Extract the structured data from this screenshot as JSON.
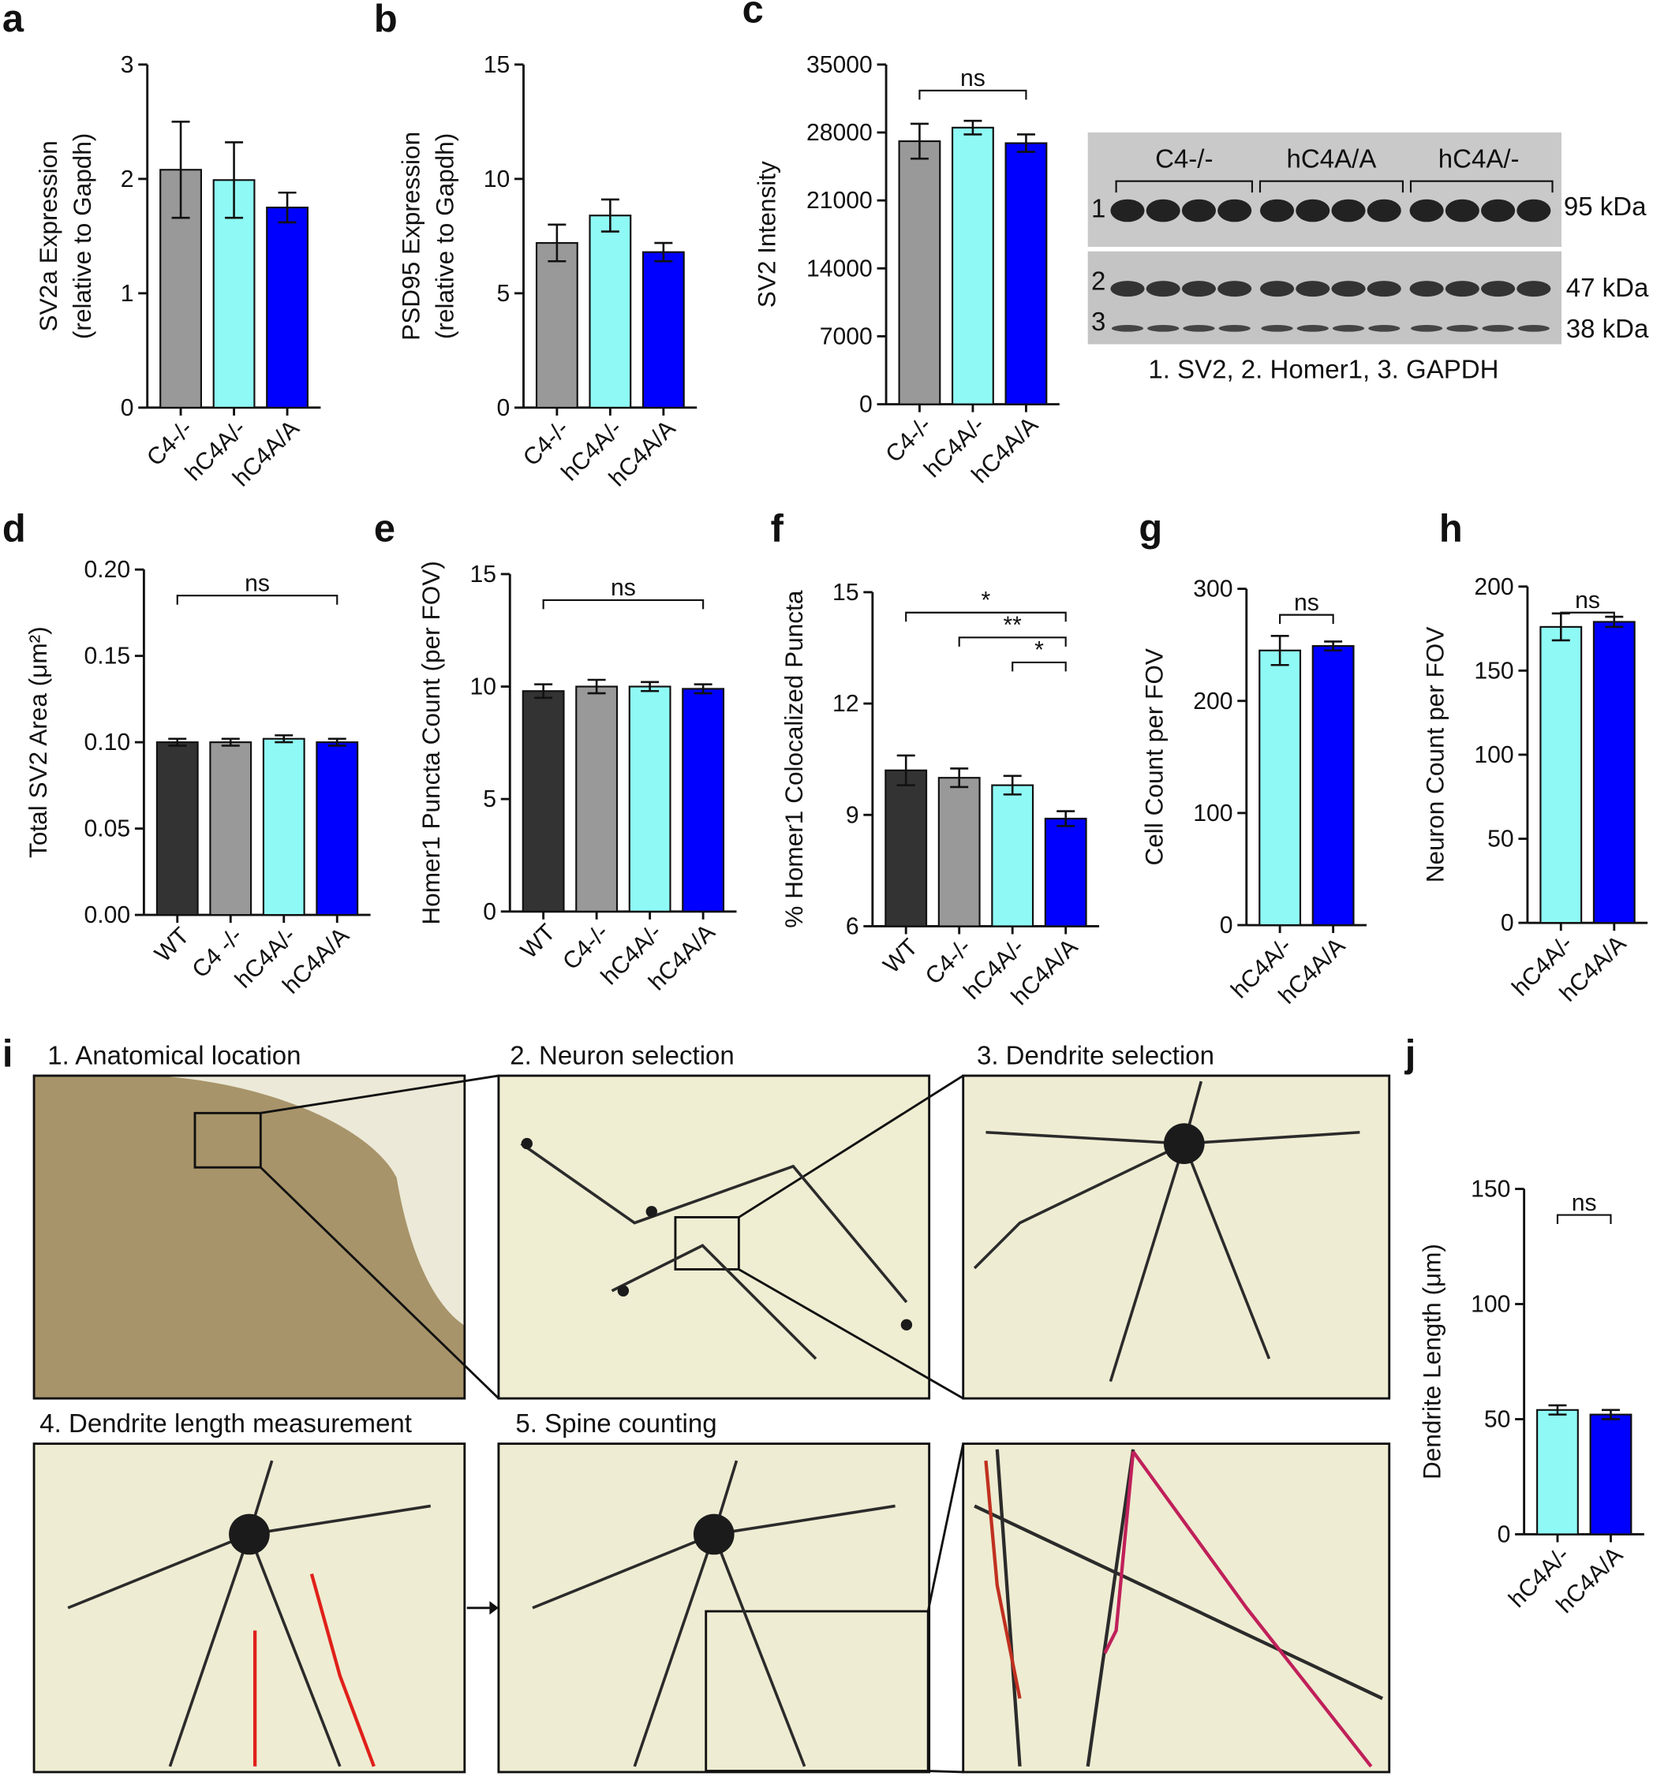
{
  "chart_data": [
    {
      "panel": "a",
      "type": "bar",
      "ylabel": [
        "SV2a Expression",
        "(relative to Gapdh)"
      ],
      "categories": [
        "C4-/-",
        "hC4A/-",
        "hC4A/A"
      ],
      "values": [
        2.08,
        1.99,
        1.75
      ],
      "errors": [
        0.42,
        0.33,
        0.13
      ],
      "colors": [
        "#999999",
        "#8ffaf5",
        "#0000ff"
      ],
      "ylim": [
        0,
        3
      ],
      "yticks": [
        0,
        1,
        2,
        3
      ]
    },
    {
      "panel": "b",
      "type": "bar",
      "ylabel": [
        "PSD95 Expression",
        "(relative to Gapdh)"
      ],
      "categories": [
        "C4-/-",
        "hC4A/-",
        "hC4A/A"
      ],
      "values": [
        7.2,
        8.4,
        6.8
      ],
      "errors": [
        0.8,
        0.7,
        0.4
      ],
      "colors": [
        "#999999",
        "#8ffaf5",
        "#0000ff"
      ],
      "ylim": [
        0,
        15
      ],
      "yticks": [
        0,
        5,
        10,
        15
      ]
    },
    {
      "panel": "c",
      "type": "bar",
      "ylabel": [
        "SV2 Intensity"
      ],
      "categories": [
        "C4-/-",
        "hC4A/-",
        "hC4A/A"
      ],
      "values": [
        27100,
        28500,
        26900
      ],
      "errors": [
        1800,
        700,
        900
      ],
      "colors": [
        "#999999",
        "#8ffaf5",
        "#0000ff"
      ],
      "ylim": [
        0,
        35000
      ],
      "yticks": [
        0,
        7000,
        14000,
        21000,
        28000,
        35000
      ],
      "significance": [
        "ns"
      ]
    },
    {
      "panel": "d",
      "type": "bar",
      "ylabel": [
        "Total SV2 Area (μm²)"
      ],
      "categories": [
        "WT",
        "C4 -/-",
        "hC4A/-",
        "hC4A/A"
      ],
      "values": [
        0.1,
        0.1,
        0.102,
        0.1
      ],
      "errors": [
        0.002,
        0.002,
        0.002,
        0.002
      ],
      "colors": [
        "#333333",
        "#999999",
        "#8ffaf5",
        "#0000ff"
      ],
      "ylim": [
        0,
        0.2
      ],
      "yticks": [
        {
          "value": 0,
          "label": "0.00"
        },
        {
          "value": 0.05,
          "label": "0.05"
        },
        {
          "value": 0.1,
          "label": "0.10"
        },
        {
          "value": 0.15,
          "label": "0.15"
        },
        {
          "value": 0.2,
          "label": "0.20"
        }
      ],
      "significance": [
        "ns"
      ]
    },
    {
      "panel": "e",
      "type": "bar",
      "ylabel": [
        "Homer1 Puncta Count (per FOV)"
      ],
      "categories": [
        "WT",
        "C4-/-",
        "hC4A/-",
        "hC4A/A"
      ],
      "values": [
        9.8,
        10,
        10,
        9.9
      ],
      "errors": [
        0.3,
        0.3,
        0.2,
        0.2
      ],
      "colors": [
        "#333333",
        "#999999",
        "#8ffaf5",
        "#0000ff"
      ],
      "ylim": [
        0,
        15
      ],
      "yticks": [
        0,
        5,
        10,
        15
      ],
      "significance": [
        "ns"
      ]
    },
    {
      "panel": "f",
      "type": "bar",
      "ylabel": [
        "% Homer1 Colocalized Puncta"
      ],
      "categories": [
        "WT",
        "C4-/-",
        "hC4A/-",
        "hC4A/A"
      ],
      "values": [
        10.2,
        10,
        9.8,
        8.9
      ],
      "errors": [
        0.4,
        0.25,
        0.25,
        0.2
      ],
      "colors": [
        "#333333",
        "#999999",
        "#8ffaf5",
        "#0000ff"
      ],
      "ylim": [
        6,
        15
      ],
      "yticks": [
        6,
        9,
        12,
        15
      ],
      "significance": [
        "*",
        "**",
        "*"
      ]
    },
    {
      "panel": "g",
      "type": "bar",
      "ylabel": [
        "Cell Count per FOV"
      ],
      "categories": [
        "hC4A/-",
        "hC4A/A"
      ],
      "values": [
        245,
        249
      ],
      "errors": [
        13,
        4
      ],
      "colors": [
        "#8ffaf5",
        "#0000ff"
      ],
      "ylim": [
        0,
        300
      ],
      "yticks": [
        0,
        100,
        200,
        300
      ],
      "significance": [
        "ns"
      ]
    },
    {
      "panel": "h",
      "type": "bar",
      "ylabel": [
        "Neuron Count per FOV"
      ],
      "categories": [
        "hC4A/-",
        "hC4A/A"
      ],
      "values": [
        176,
        179
      ],
      "errors": [
        8,
        3
      ],
      "colors": [
        "#8ffaf5",
        "#0000ff"
      ],
      "ylim": [
        0,
        200
      ],
      "yticks": [
        0,
        50,
        100,
        150,
        200
      ],
      "significance": [
        "ns"
      ]
    },
    {
      "panel": "j",
      "type": "bar",
      "ylabel": [
        "Dendrite Length (μm)"
      ],
      "categories": [
        "hC4A/-",
        "hC4A/A"
      ],
      "values": [
        54,
        52
      ],
      "errors": [
        2,
        2
      ],
      "colors": [
        "#8ffaf5",
        "#0000ff"
      ],
      "ylim": [
        0,
        150
      ],
      "yticks": [
        0,
        50,
        100,
        150
      ],
      "significance": [
        "ns"
      ]
    }
  ],
  "blot": {
    "groups": [
      "C4-/-",
      "hC4A/A",
      "hC4A/-"
    ],
    "rows": [
      "1",
      "2",
      "3"
    ],
    "sizes": [
      "95 kDa",
      "47 kDa",
      "38 kDa"
    ],
    "caption": "1. SV2, 2. Homer1, 3. GAPDH"
  },
  "images": {
    "panel": "i",
    "captions": [
      "1. Anatomical location",
      "2. Neuron selection",
      "3. Dendrite selection",
      "4. Dendrite length measurement",
      "5. Spine counting"
    ]
  }
}
